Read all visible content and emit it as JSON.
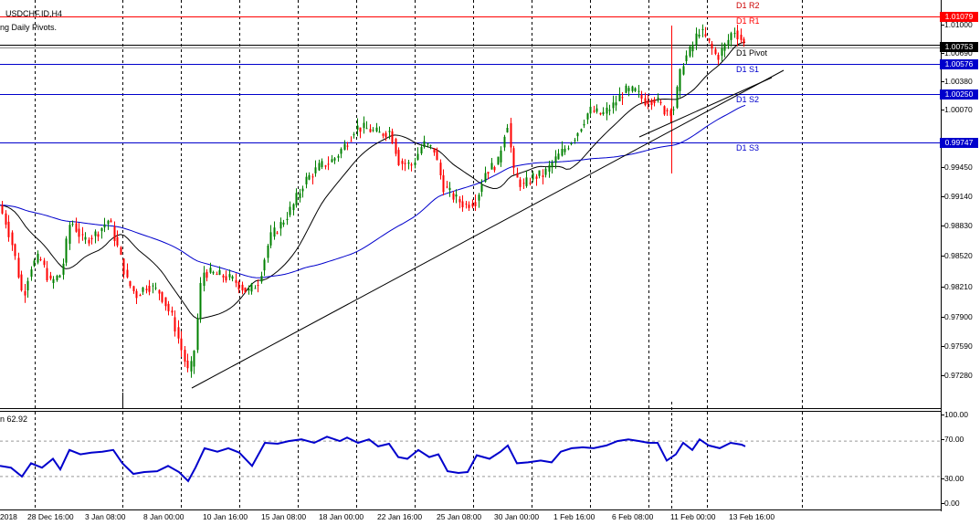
{
  "header": {
    "symbol_title": "USDCHF.ID,H4",
    "indicator_title": "ng Daily Pivots."
  },
  "subwindow": {
    "indicator_label": "n 62.92",
    "levels": [
      "100.00",
      "70.00",
      "30.00",
      "0.00"
    ],
    "color": "#0000cc"
  },
  "pivots": [
    {
      "name": "D1 R2",
      "price": null,
      "color": "#cc0000"
    },
    {
      "name": "D1 R1",
      "price": "1.01079",
      "color": "#ff0000"
    },
    {
      "name": "D1 Pivot",
      "price": null,
      "color": "#000000"
    },
    {
      "name": "D1 S1",
      "price": "1.00576",
      "color": "#0000cc"
    },
    {
      "name": "D1 S2",
      "price": "1.00250",
      "color": "#0000cc"
    },
    {
      "name": "D1 S3",
      "price": "0.99747",
      "color": "#0000cc"
    }
  ],
  "current_price": {
    "value": "1.00753",
    "color": "#000000"
  },
  "price_axis": [
    "1.01000",
    "1.00690",
    "1.00380",
    "1.00070",
    "0.99450",
    "0.99140",
    "0.98830",
    "0.98520",
    "0.98210",
    "0.97900",
    "0.97590",
    "0.97280"
  ],
  "time_axis": [
    "2018",
    "28 Dec 16:00",
    "3 Jan 08:00",
    "8 Jan 00:00",
    "10 Jan 16:00",
    "15 Jan 08:00",
    "18 Jan 00:00",
    "22 Jan 16:00",
    "25 Jan 08:00",
    "30 Jan 00:00",
    "1 Feb 16:00",
    "6 Feb 08:00",
    "11 Feb 00:00",
    "13 Feb 16:00"
  ],
  "colors": {
    "bull": "#008000",
    "bear": "#ff0000",
    "ma_fast": "#000000",
    "ma_slow": "#0000cc",
    "trendline": "#000000"
  }
}
